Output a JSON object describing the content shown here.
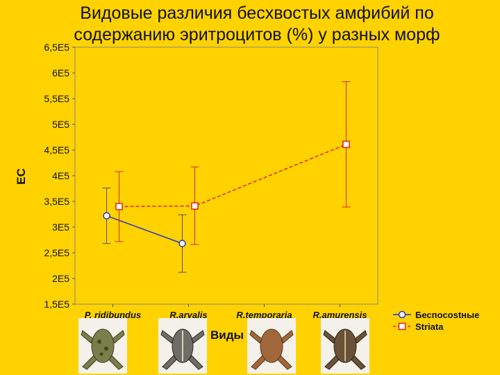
{
  "title": "Видовые различия бесхвостых амфибий по содержанию эритроцитов (%) у разных морф",
  "chart_data": {
    "type": "line",
    "title": "Видовые различия бесхвостых амфибий по содержанию эритроцитов (%) у разных морф",
    "xlabel": "Виды",
    "ylabel": "ЕС",
    "categories": [
      "P. ridibundus",
      "R.arvalis",
      "R.temporaria",
      "R.amurensis"
    ],
    "ylim": [
      150000,
      650000
    ],
    "yticks": [
      150000,
      200000,
      250000,
      300000,
      350000,
      400000,
      450000,
      500000,
      550000,
      600000,
      650000
    ],
    "ytick_labels": [
      "1,5E5",
      "2E5",
      "2,5E5",
      "3E5",
      "3,5E5",
      "4E5",
      "4,5E5",
      "5E5",
      "5,5E5",
      "6E5",
      "6,5E5"
    ],
    "grid": false,
    "legend_position": "bottom-right",
    "series": [
      {
        "name": "Беспоcostные",
        "color": "#2233CC",
        "marker": "circle",
        "line_style": "solid",
        "values": [
          322000,
          268000,
          null,
          null
        ],
        "lower": [
          268000,
          212000,
          null,
          null
        ],
        "upper": [
          376000,
          324000,
          null,
          null
        ]
      },
      {
        "name": "Striata",
        "color": "#DD2222",
        "marker": "square",
        "line_style": "dashed",
        "values": [
          340000,
          341000,
          null,
          461000
        ],
        "lower": [
          272000,
          266000,
          null,
          339000
        ],
        "upper": [
          408000,
          417000,
          null,
          583000
        ]
      }
    ]
  },
  "images": {
    "frog_1": "frog-photo",
    "frog_2": "frog-photo",
    "frog_3": "frog-photo",
    "frog_4": "frog-photo"
  }
}
